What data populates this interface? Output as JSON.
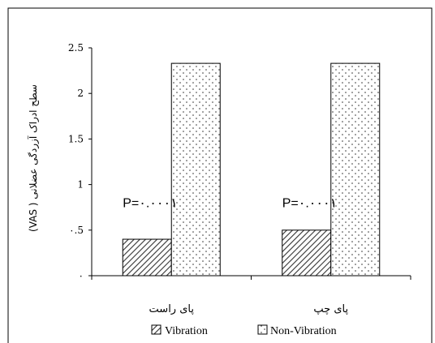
{
  "chart_data": {
    "type": "bar",
    "ylabel": "سطح ادراک آزردگی عضلانی ( VAS)",
    "yticks": [
      "۰",
      "۰.5",
      "1",
      "1.5",
      "2",
      "2.5"
    ],
    "ylim": [
      0,
      2.5
    ],
    "grid": false,
    "legend_position": "bottom",
    "categories": [
      "پای راست",
      "پای چپ"
    ],
    "series": [
      {
        "name": "Vibration",
        "values": [
          0.4,
          0.5
        ],
        "fill": "diagonal-hatch",
        "color": "#555555"
      },
      {
        "name": "Non-Vibration",
        "values": [
          2.33,
          2.33
        ],
        "fill": "dotted",
        "color": "#555555"
      }
    ],
    "annotations": [
      "P=۰.۰۰۰۱",
      "P=۰.۰۰۰۱"
    ]
  }
}
